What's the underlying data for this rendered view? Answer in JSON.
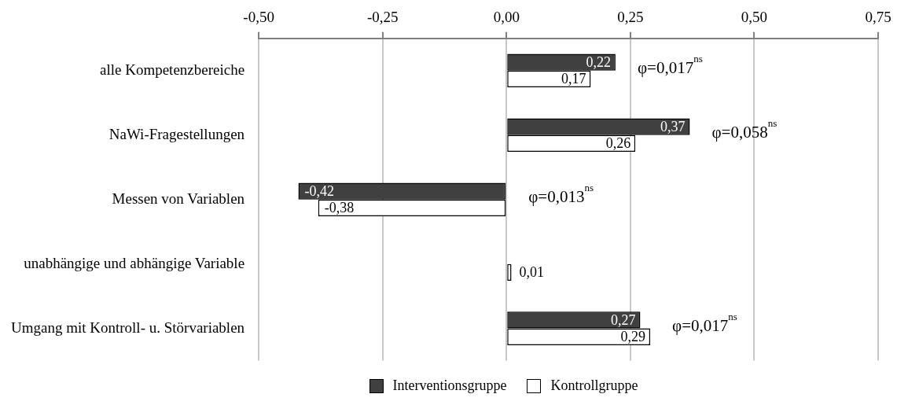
{
  "chart_data": {
    "type": "bar",
    "orientation": "horizontal",
    "categories": [
      "alle Kompetenzbereiche",
      "NaWi-Fragestellungen",
      "Messen von Variablen",
      "unabhängige und abhängige Variable",
      "Umgang mit Kontroll- u. Störvariablen"
    ],
    "series": [
      {
        "name": "Interventionsgruppe",
        "color": "#404040",
        "values": [
          0.22,
          0.37,
          -0.42,
          0.0,
          0.27
        ],
        "value_labels": [
          "0,22",
          "0,37",
          "-0,42",
          null,
          "0,27"
        ]
      },
      {
        "name": "Kontrollgruppe",
        "color": "#ffffff",
        "values": [
          0.17,
          0.26,
          -0.38,
          0.01,
          0.29
        ],
        "value_labels": [
          "0,17",
          "0,26",
          "-0,38",
          "0,01",
          "0,29"
        ]
      }
    ],
    "xlim": [
      -0.5,
      0.75
    ],
    "xticks": [
      {
        "value": -0.5,
        "label": "-0,50"
      },
      {
        "value": -0.25,
        "label": "-0,25"
      },
      {
        "value": 0,
        "label": "0,00"
      },
      {
        "value": 0.25,
        "label": "0,25"
      },
      {
        "value": 0.5,
        "label": "0,50"
      },
      {
        "value": 0.75,
        "label": "0,75"
      }
    ],
    "annotations": [
      "φ=0,017$^{ns}$",
      "φ=0,058$^{ns}$",
      "φ=0,013$^{ns}$",
      "φ=0,017$^{ns}$"
    ],
    "grid": "x",
    "legend": "bottom"
  }
}
